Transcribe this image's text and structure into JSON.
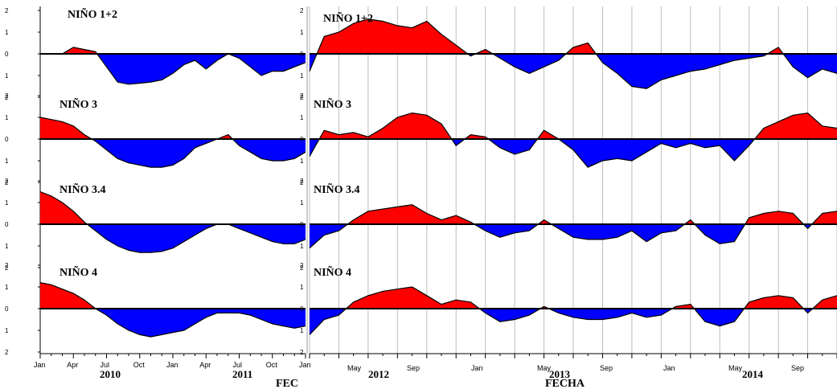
{
  "chart_data": [
    {
      "type": "area",
      "part": "left",
      "xlabel": "FEC",
      "x_ticks": [
        "Jan",
        "Apr",
        "Jul",
        "Oct",
        "Jan",
        "Apr",
        "Jul",
        "Oct",
        "Jan"
      ],
      "years": [
        "2010",
        "2011"
      ],
      "y_ticks": [
        "2",
        "1",
        "0",
        "1",
        "2"
      ],
      "ylim": [
        -2,
        2
      ],
      "grid": false,
      "colors": {
        "positive": "#ff0000",
        "negative": "#0000ff",
        "line": "#000000"
      },
      "x_months": [
        0,
        1,
        2,
        3,
        4,
        5,
        6,
        7,
        8,
        9,
        10,
        11,
        12,
        13,
        14,
        15,
        16,
        17,
        18,
        19,
        20,
        21,
        22,
        23,
        24
      ],
      "panels": [
        {
          "title": "NIÑO 1+2",
          "values": [
            0,
            0,
            0,
            0.3,
            0.2,
            0.1,
            -0.6,
            -1.3,
            -1.4,
            -1.35,
            -1.3,
            -1.2,
            -0.9,
            -0.5,
            -0.3,
            -0.7,
            -0.3,
            0,
            -0.2,
            -0.6,
            -1.0,
            -0.8,
            -0.8,
            -0.6,
            -0.4
          ]
        },
        {
          "title": "NIÑO 3",
          "values": [
            1.0,
            0.9,
            0.8,
            0.6,
            0.2,
            -0.1,
            -0.5,
            -0.9,
            -1.1,
            -1.2,
            -1.3,
            -1.3,
            -1.2,
            -0.9,
            -0.4,
            -0.2,
            0,
            0.2,
            -0.3,
            -0.6,
            -0.9,
            -1.0,
            -1.0,
            -0.9,
            -0.6
          ]
        },
        {
          "title": "NIÑO 3.4",
          "values": [
            1.5,
            1.3,
            1.0,
            0.6,
            0.1,
            -0.3,
            -0.7,
            -1.0,
            -1.2,
            -1.3,
            -1.3,
            -1.25,
            -1.1,
            -0.8,
            -0.5,
            -0.2,
            0,
            0,
            -0.2,
            -0.4,
            -0.6,
            -0.8,
            -0.9,
            -0.9,
            -0.7
          ]
        },
        {
          "title": "NIÑO 4",
          "values": [
            1.2,
            1.1,
            0.9,
            0.7,
            0.4,
            0.0,
            -0.3,
            -0.7,
            -1.0,
            -1.2,
            -1.3,
            -1.2,
            -1.1,
            -1.0,
            -0.7,
            -0.4,
            -0.2,
            -0.2,
            -0.2,
            -0.3,
            -0.5,
            -0.7,
            -0.8,
            -0.9,
            -0.8
          ]
        }
      ]
    },
    {
      "type": "area",
      "part": "right",
      "xlabel": "FECHA",
      "x_ticks": [
        "May",
        "Sep",
        "Jan",
        "May",
        "Sep",
        "Jan",
        "May",
        "Sep"
      ],
      "years": [
        "2012",
        "2013",
        "2014"
      ],
      "grid": true,
      "colors": {
        "positive": "#ff0000",
        "negative": "#0000ff",
        "line": "#000000"
      },
      "x_months": [
        0,
        1,
        2,
        3,
        4,
        5,
        6,
        7,
        8,
        9,
        10,
        11,
        12,
        13,
        14,
        15,
        16,
        17,
        18,
        19,
        20,
        21,
        22,
        23,
        24,
        25,
        26,
        27,
        28,
        29,
        30,
        31,
        32,
        33,
        34,
        35,
        36
      ],
      "panels": [
        {
          "title": "NIÑO 1+2",
          "values": [
            -0.8,
            0.8,
            1.0,
            1.4,
            1.6,
            1.5,
            1.3,
            1.2,
            1.5,
            0.9,
            0.4,
            -0.1,
            0.2,
            -0.2,
            -0.6,
            -0.9,
            -0.6,
            -0.3,
            0.3,
            0.5,
            -0.4,
            -0.9,
            -1.5,
            -1.6,
            -1.2,
            -1.0,
            -0.8,
            -0.7,
            -0.5,
            -0.3,
            -0.2,
            -0.1,
            0.3,
            -0.6,
            -1.1,
            -0.7,
            -0.9
          ]
        },
        {
          "title": "NIÑO 3",
          "values": [
            -0.8,
            0.4,
            0.2,
            0.3,
            0.1,
            0.5,
            1.0,
            1.2,
            1.1,
            0.7,
            -0.3,
            0.2,
            0.1,
            -0.4,
            -0.7,
            -0.5,
            0.4,
            0,
            -0.5,
            -1.3,
            -1.0,
            -0.9,
            -1.0,
            -0.6,
            -0.2,
            -0.4,
            -0.2,
            -0.4,
            -0.3,
            -1.0,
            -0.3,
            0.5,
            0.8,
            1.1,
            1.2,
            0.6,
            0.5
          ]
        },
        {
          "title": "NIÑO 3.4",
          "values": [
            -1.1,
            -0.5,
            -0.3,
            0.2,
            0.6,
            0.7,
            0.8,
            0.9,
            0.5,
            0.2,
            0.4,
            0.1,
            -0.3,
            -0.6,
            -0.4,
            -0.3,
            0.2,
            -0.2,
            -0.6,
            -0.7,
            -0.7,
            -0.6,
            -0.3,
            -0.8,
            -0.4,
            -0.3,
            0.2,
            -0.5,
            -0.9,
            -0.8,
            0.3,
            0.5,
            0.6,
            0.5,
            -0.2,
            0.5,
            0.6
          ]
        },
        {
          "title": "NIÑO 4",
          "values": [
            -1.2,
            -0.5,
            -0.3,
            0.3,
            0.6,
            0.8,
            0.9,
            1.0,
            0.6,
            0.2,
            0.4,
            0.3,
            -0.2,
            -0.6,
            -0.5,
            -0.3,
            0.1,
            -0.2,
            -0.4,
            -0.5,
            -0.5,
            -0.4,
            -0.2,
            -0.4,
            -0.3,
            0.1,
            0.2,
            -0.6,
            -0.8,
            -0.6,
            0.3,
            0.5,
            0.6,
            0.5,
            -0.2,
            0.4,
            0.6
          ]
        }
      ]
    }
  ]
}
